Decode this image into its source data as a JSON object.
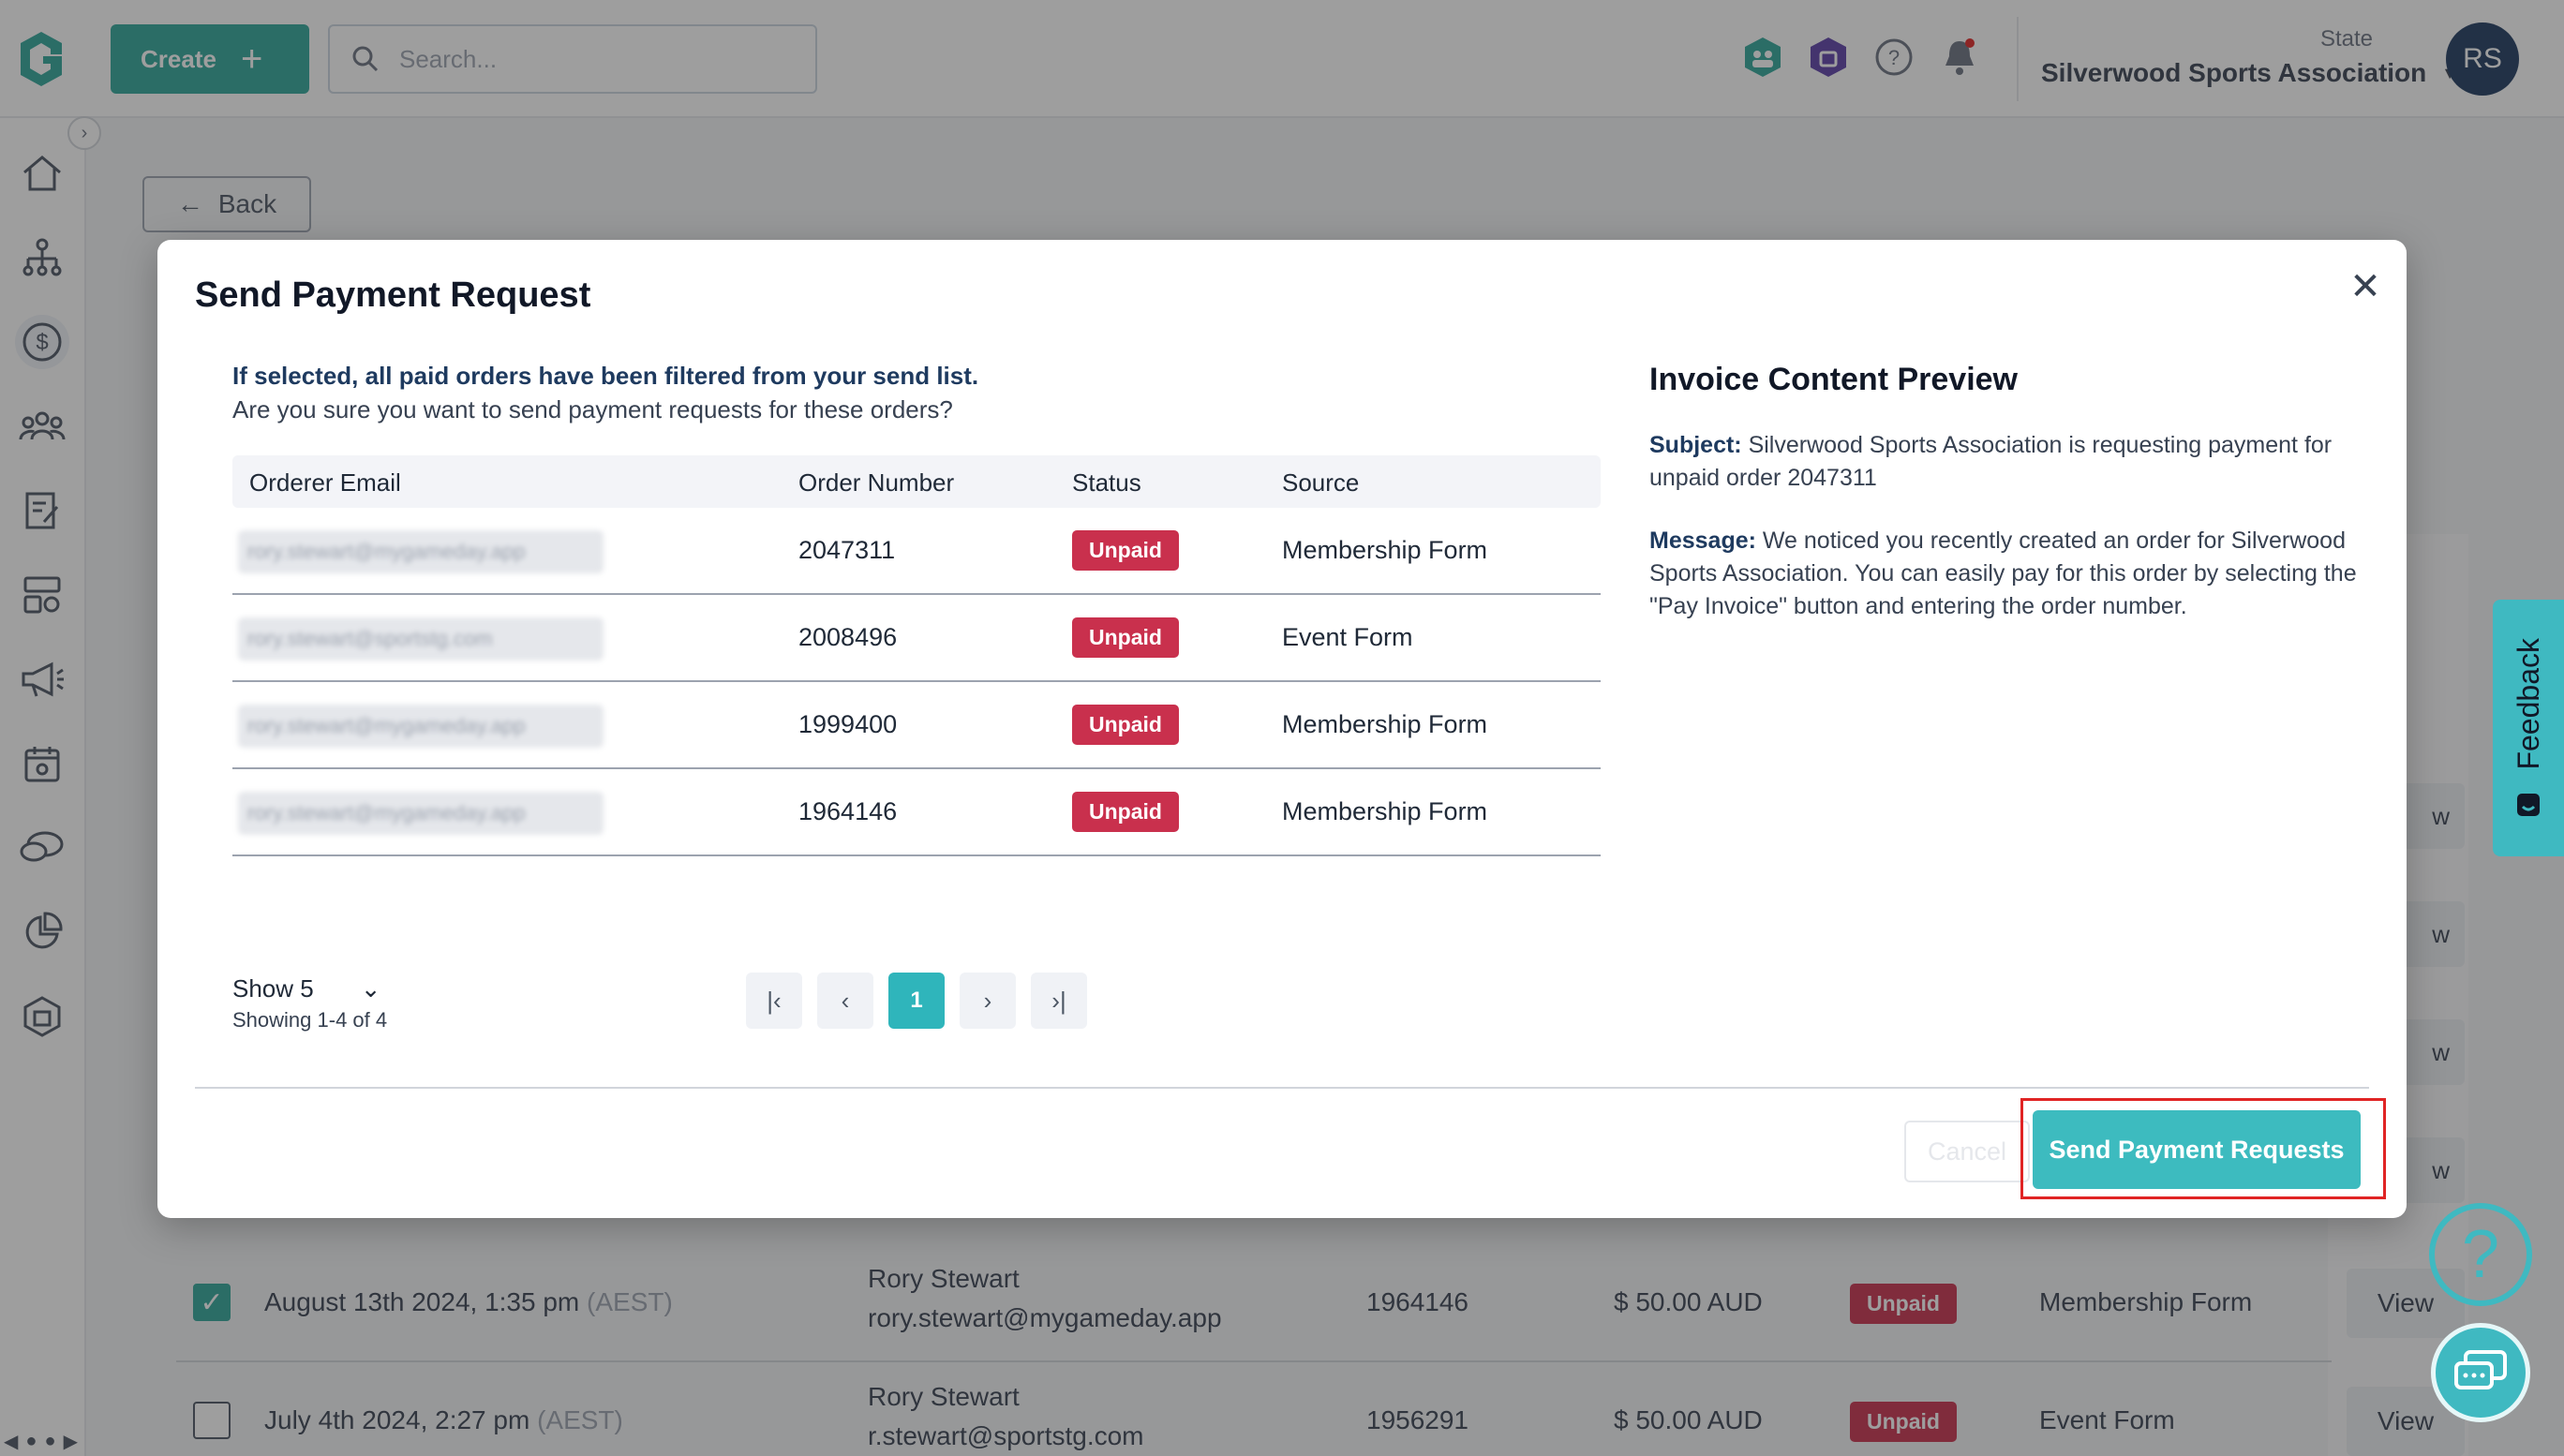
{
  "topbar": {
    "create_label": "Create",
    "search_placeholder": "Search...",
    "org_label": "State",
    "org_name": "Silverwood Sports Association",
    "avatar_initials": "RS",
    "accent_color": "#2fa69a"
  },
  "sidebar": {
    "icons": [
      "home-icon",
      "org-chart-icon",
      "dollar-icon",
      "people-icon",
      "form-edit-icon",
      "registrations-icon",
      "megaphone-icon",
      "calendar-icon",
      "chat-icon",
      "pie-chart-icon",
      "bag-icon"
    ]
  },
  "page": {
    "back_label": "Back"
  },
  "background_rows": [
    {
      "date": "August 13th 2024, 1:35 pm",
      "tz": "(AEST)",
      "name": "Rory Stewart",
      "email": "rory.stewart@mygameday.app",
      "order_number": "1964146",
      "amount": "$ 50.00 AUD",
      "status": "Unpaid",
      "source": "Membership Form",
      "view": "View",
      "checked": true
    },
    {
      "date": "July 4th 2024, 2:27 pm",
      "tz": "(AEST)",
      "name": "Rory Stewart",
      "email": "r.stewart@sportstg.com",
      "order_number": "1956291",
      "amount": "$ 50.00 AUD",
      "status": "Unpaid",
      "source": "Event Form",
      "view": "View",
      "checked": false
    }
  ],
  "right_column": {
    "view_partial": "w"
  },
  "feedback": {
    "label": "Feedback"
  },
  "modal": {
    "title": "Send Payment Request",
    "notice_bold": "If selected, all paid orders have been filtered from your send list.",
    "notice": "Are you sure you want to send payment requests for these orders?",
    "columns": [
      "Orderer Email",
      "Order Number",
      "Status",
      "Source"
    ],
    "orders": [
      {
        "email": "rory.stewart@mygameday.app",
        "order_number": "2047311",
        "status": "Unpaid",
        "source": "Membership Form"
      },
      {
        "email": "rory.stewart@sportstg.com",
        "order_number": "2008496",
        "status": "Unpaid",
        "source": "Event Form"
      },
      {
        "email": "rory.stewart@mygameday.app",
        "order_number": "1999400",
        "status": "Unpaid",
        "source": "Membership Form"
      },
      {
        "email": "rory.stewart@mygameday.app",
        "order_number": "1964146",
        "status": "Unpaid",
        "source": "Membership Form"
      }
    ],
    "show_label": "Show 5",
    "showing_label": "Showing 1-4 of 4",
    "current_page": "1",
    "preview": {
      "title": "Invoice Content Preview",
      "subject_label": "Subject:",
      "subject_text": "Silverwood Sports Association is requesting payment for unpaid order 2047311",
      "message_label": "Message:",
      "message_text": "We noticed you recently created an order for Silverwood Sports Association. You can easily pay for this order by selecting the \"Pay Invoice\" button and entering the order number."
    },
    "cancel_label": "Cancel",
    "send_label": "Send Payment Requests",
    "status_color": "#c9304d",
    "send_color": "#3dbbbf"
  }
}
